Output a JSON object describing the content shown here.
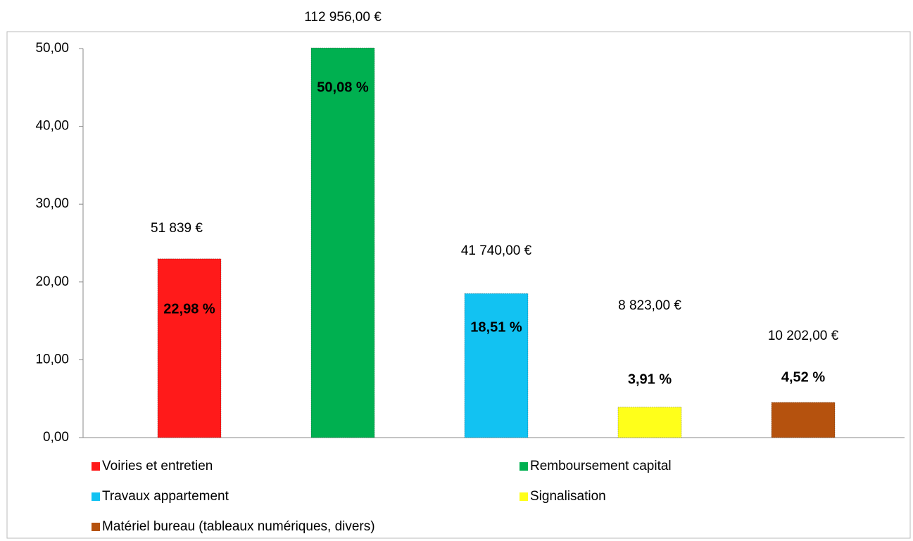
{
  "chart_data": {
    "type": "bar",
    "categories": [
      "Voiries et entretien",
      "Remboursement capital",
      "Travaux appartement",
      "Signalisation",
      "Matériel bureau (tableaux numériques, divers)"
    ],
    "values": [
      22.98,
      50.08,
      18.51,
      3.91,
      4.52
    ],
    "value_labels": [
      "22,98 %",
      "50,08 %",
      "18,51 %",
      "3,91 %",
      "4,52 %"
    ],
    "annotations": [
      "51 839 €",
      "112 956,00 €",
      "41 740,00 €",
      "8 823,00 €",
      "10 202,00 €"
    ],
    "colors": [
      "#ff1a1a",
      "#00b050",
      "#12c2f2",
      "#ffff1a",
      "#b5520e"
    ],
    "ylim": [
      0,
      50
    ],
    "yticks": [
      {
        "value": 0,
        "label": "0,00"
      },
      {
        "value": 10,
        "label": "10,00"
      },
      {
        "value": 20,
        "label": "20,00"
      },
      {
        "value": 30,
        "label": "30,00"
      },
      {
        "value": 40,
        "label": "40,00"
      },
      {
        "value": 50,
        "label": "50,00"
      }
    ],
    "legend": "bottom"
  }
}
